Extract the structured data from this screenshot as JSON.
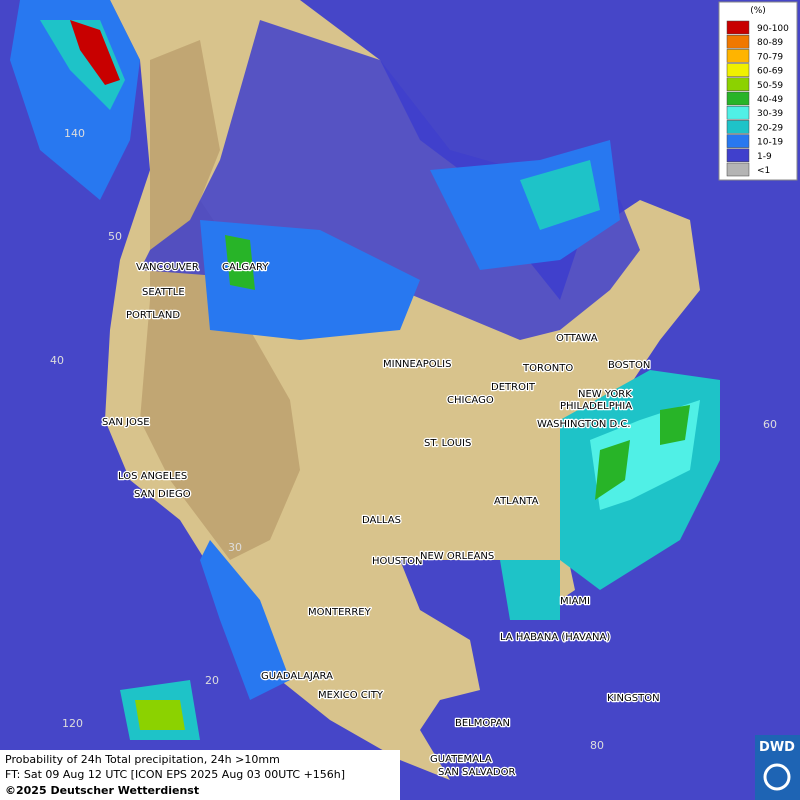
{
  "legend": {
    "title": "(%)",
    "entries": [
      {
        "label": "90-100",
        "color": "#c80000"
      },
      {
        "label": "80-89",
        "color": "#f07800"
      },
      {
        "label": "70-79",
        "color": "#ffb400"
      },
      {
        "label": "60-69",
        "color": "#f0f000"
      },
      {
        "label": "50-59",
        "color": "#8cd200"
      },
      {
        "label": "40-49",
        "color": "#28b428"
      },
      {
        "label": "30-39",
        "color": "#50f0e6"
      },
      {
        "label": "20-29",
        "color": "#1ec3c8"
      },
      {
        "label": "10-19",
        "color": "#2878f0"
      },
      {
        "label": "1-9",
        "color": "#4040cc"
      },
      {
        "label": "<1",
        "color": "#b4b4b4"
      }
    ]
  },
  "cities": [
    "VANCOUVER",
    "CALGARY",
    "SEATTLE",
    "PORTLAND",
    "MINNEAPOLIS",
    "OTTAWA",
    "TORONTO",
    "BOSTON",
    "DETROIT",
    "CHICAGO",
    "NEW YORK",
    "PHILADELPHIA",
    "WASHINGTON D.C.",
    "SAN JOSE",
    "ST. LOUIS",
    "LOS ANGELES",
    "SAN DIEGO",
    "ATLANTA",
    "DALLAS",
    "HOUSTON",
    "NEW ORLEANS",
    "MIAMI",
    "MONTERREY",
    "LA HABANA (HAVANA)",
    "GUADALAJARA",
    "MEXICO CITY",
    "KINGSTON",
    "BELMOPAN",
    "GUATEMALA",
    "SAN SALVADOR"
  ],
  "grid_labels": [
    "140",
    "50",
    "40",
    "30",
    "20",
    "120",
    "60",
    "80"
  ],
  "caption": {
    "line1": "Probability of 24h Total precipitation, 24h >10mm",
    "line2": "FT: Sat 09 Aug 12 UTC [ICON EPS 2025 Aug 03 00UTC +156h]",
    "copyright": "©2025 Deutscher Wetterdienst"
  },
  "logo": "DWD"
}
